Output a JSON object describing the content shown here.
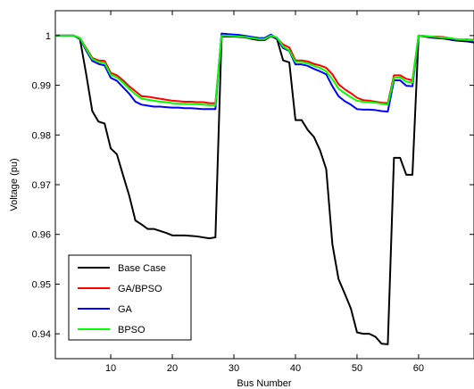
{
  "chart_data": {
    "type": "line",
    "title": "",
    "xlabel": "Bus Number",
    "ylabel": "Voltage (pu)",
    "xlim": [
      1,
      69
    ],
    "ylim": [
      0.935,
      1.005
    ],
    "x_ticks": [
      10,
      20,
      30,
      40,
      50,
      60
    ],
    "y_ticks": [
      0.94,
      0.95,
      0.96,
      0.97,
      0.98,
      0.99,
      1
    ],
    "y_tick_labels": [
      "0.94",
      "0.95",
      "0.96",
      "0.97",
      "0.98",
      "0.99",
      "1"
    ],
    "grid": false,
    "legend_position": "bottom-left",
    "x": [
      1,
      2,
      3,
      4,
      5,
      6,
      7,
      8,
      9,
      10,
      11,
      12,
      13,
      14,
      15,
      16,
      17,
      18,
      19,
      20,
      21,
      22,
      23,
      24,
      25,
      26,
      27,
      28,
      29,
      30,
      31,
      32,
      33,
      34,
      35,
      36,
      37,
      38,
      39,
      40,
      41,
      42,
      43,
      44,
      45,
      46,
      47,
      48,
      49,
      50,
      51,
      52,
      53,
      54,
      55,
      56,
      57,
      58,
      59,
      60,
      61,
      62,
      63,
      64,
      65,
      66,
      67,
      68,
      69
    ],
    "series": [
      {
        "name": "Base Case",
        "color": "#000000",
        "values": [
          1.0,
          1.0,
          1.0,
          1.0,
          0.9993,
          0.9923,
          0.9848,
          0.9827,
          0.9823,
          0.9773,
          0.9761,
          0.9719,
          0.9678,
          0.9628,
          0.962,
          0.9611,
          0.9611,
          0.9607,
          0.9603,
          0.9598,
          0.9598,
          0.9598,
          0.9597,
          0.9596,
          0.9594,
          0.9592,
          0.9594,
          0.9998,
          0.9998,
          0.9998,
          0.9997,
          0.9996,
          0.9993,
          0.9991,
          0.9991,
          0.9999,
          0.9993,
          0.995,
          0.9946,
          0.983,
          0.983,
          0.981,
          0.9796,
          0.9769,
          0.9731,
          0.958,
          0.951,
          0.9481,
          0.9451,
          0.9403,
          0.94,
          0.94,
          0.9394,
          0.938,
          0.9379,
          0.9754,
          0.9754,
          0.972,
          0.972,
          1.0,
          0.9998,
          0.9996,
          0.9995,
          0.9994,
          0.9992,
          0.999,
          0.9989,
          0.9988,
          0.9986
        ]
      },
      {
        "name": "GA/BPSO",
        "color": "#ff0000",
        "values": [
          1.0,
          1.0,
          1.0,
          1.0,
          0.9995,
          0.9975,
          0.9955,
          0.995,
          0.9949,
          0.9925,
          0.992,
          0.991,
          0.9898,
          0.9888,
          0.9878,
          0.9877,
          0.9875,
          0.9873,
          0.9871,
          0.9869,
          0.9868,
          0.9867,
          0.9867,
          0.9866,
          0.9866,
          0.9864,
          0.9864,
          1.0,
          1.0,
          0.9999,
          0.9998,
          0.9997,
          0.9995,
          0.9993,
          0.9993,
          1.0,
          0.9995,
          0.9982,
          0.9976,
          0.995,
          0.995,
          0.9948,
          0.9943,
          0.994,
          0.9935,
          0.9922,
          0.9902,
          0.9892,
          0.9884,
          0.9875,
          0.987,
          0.9869,
          0.9867,
          0.9865,
          0.9864,
          0.992,
          0.992,
          0.9913,
          0.991,
          1.0,
          0.9999,
          0.9998,
          0.9998,
          0.9997,
          0.9995,
          0.9993,
          0.9992,
          0.9992,
          0.9991
        ]
      },
      {
        "name": "GA",
        "color": "#0000ff",
        "values": [
          1.0,
          1.0,
          1.0,
          1.0,
          0.9994,
          0.997,
          0.9949,
          0.9943,
          0.994,
          0.9915,
          0.9909,
          0.9896,
          0.9883,
          0.9867,
          0.9861,
          0.9859,
          0.9857,
          0.9857,
          0.9856,
          0.9855,
          0.9855,
          0.9854,
          0.9854,
          0.9853,
          0.9852,
          0.9852,
          0.9852,
          1.0004,
          1.0003,
          1.0002,
          1.0001,
          0.9999,
          0.9997,
          0.9995,
          0.9995,
          1.0002,
          0.9994,
          0.9975,
          0.9969,
          0.9942,
          0.9942,
          0.9939,
          0.9933,
          0.9928,
          0.9922,
          0.9898,
          0.9878,
          0.9868,
          0.9861,
          0.9852,
          0.9851,
          0.9851,
          0.985,
          0.9848,
          0.9847,
          0.991,
          0.991,
          0.9899,
          0.9898,
          1.0,
          0.9999,
          0.9997,
          0.9997,
          0.9996,
          0.9994,
          0.9992,
          0.9991,
          0.999,
          0.9989
        ]
      },
      {
        "name": "BPSO",
        "color": "#00ff00",
        "values": [
          1.0,
          1.0,
          1.0,
          1.0,
          0.9995,
          0.9973,
          0.9953,
          0.9947,
          0.9945,
          0.9921,
          0.9916,
          0.9905,
          0.9893,
          0.9882,
          0.9873,
          0.9871,
          0.9869,
          0.9867,
          0.9866,
          0.9864,
          0.9863,
          0.9863,
          0.9862,
          0.9862,
          0.9861,
          0.986,
          0.986,
          1.0,
          1.0,
          0.9999,
          0.9998,
          0.9997,
          0.9995,
          0.9993,
          0.9993,
          1.0,
          0.9996,
          0.9978,
          0.997,
          0.9947,
          0.9947,
          0.9944,
          0.9939,
          0.9935,
          0.9928,
          0.9912,
          0.9893,
          0.9884,
          0.9876,
          0.9869,
          0.9867,
          0.9866,
          0.9865,
          0.9863,
          0.9861,
          0.9915,
          0.9916,
          0.9907,
          0.9906,
          1.0,
          0.9999,
          0.9998,
          0.9997,
          0.9996,
          0.9995,
          0.9993,
          0.9992,
          0.9991,
          0.999
        ]
      }
    ]
  }
}
